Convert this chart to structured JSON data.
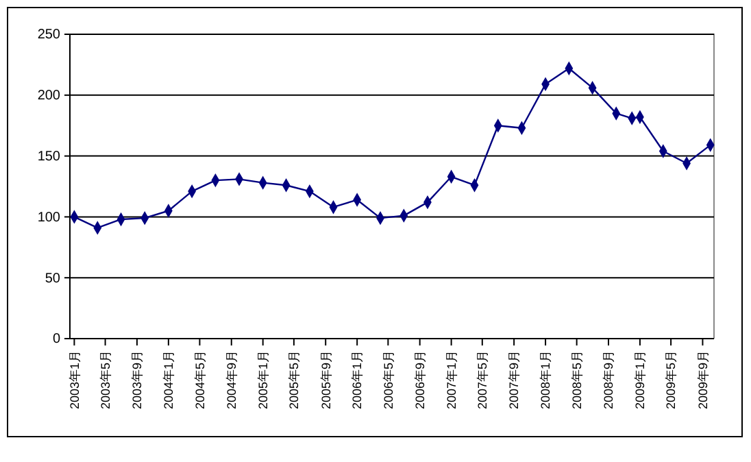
{
  "chart_data": {
    "type": "line",
    "x": [
      "2003-01",
      "2003-04",
      "2003-07",
      "2003-10",
      "2004-01",
      "2004-04",
      "2004-07",
      "2004-10",
      "2005-01",
      "2005-04",
      "2005-07",
      "2005-10",
      "2006-01",
      "2006-04",
      "2006-07",
      "2006-10",
      "2007-01",
      "2007-04",
      "2007-07",
      "2007-10",
      "2008-01",
      "2008-04",
      "2008-07",
      "2008-10",
      "2008-12",
      "2009-01",
      "2009-04",
      "2009-07",
      "2009-10"
    ],
    "series": [
      {
        "color": "#000080",
        "values": [
          100,
          91,
          98,
          99,
          105,
          121,
          130,
          131,
          128,
          126,
          121,
          108,
          114,
          99,
          101,
          112,
          133,
          126,
          175,
          173,
          209,
          222,
          206,
          185,
          181,
          182,
          154,
          144,
          159
        ]
      }
    ],
    "xlim": [
      "2002-12-15",
      "2009-10-15"
    ],
    "xticks": [
      {
        "value": "2003-01",
        "label": "2003年1月"
      },
      {
        "value": "2003-05",
        "label": "2003年5月"
      },
      {
        "value": "2003-09",
        "label": "2003年9月"
      },
      {
        "value": "2004-01",
        "label": "2004年1月"
      },
      {
        "value": "2004-05",
        "label": "2004年5月"
      },
      {
        "value": "2004-09",
        "label": "2004年9月"
      },
      {
        "value": "2005-01",
        "label": "2005年1月"
      },
      {
        "value": "2005-05",
        "label": "2005年5月"
      },
      {
        "value": "2005-09",
        "label": "2005年9月"
      },
      {
        "value": "2006-01",
        "label": "2006年1月"
      },
      {
        "value": "2006-05",
        "label": "2006年5月"
      },
      {
        "value": "2006-09",
        "label": "2006年9月"
      },
      {
        "value": "2007-01",
        "label": "2007年1月"
      },
      {
        "value": "2007-05",
        "label": "2007年5月"
      },
      {
        "value": "2007-09",
        "label": "2007年9月"
      },
      {
        "value": "2008-01",
        "label": "2008年1月"
      },
      {
        "value": "2008-05",
        "label": "2008年5月"
      },
      {
        "value": "2008-09",
        "label": "2008年9月"
      },
      {
        "value": "2009-01",
        "label": "2009年1月"
      },
      {
        "value": "2009-05",
        "label": "2009年5月"
      },
      {
        "value": "2009-09",
        "label": "2009年9月"
      }
    ],
    "ylim": [
      0,
      250
    ],
    "yticks": [
      0,
      50,
      100,
      150,
      200,
      250
    ],
    "grid": "y",
    "marker": "diamond",
    "line_style": "solid"
  }
}
